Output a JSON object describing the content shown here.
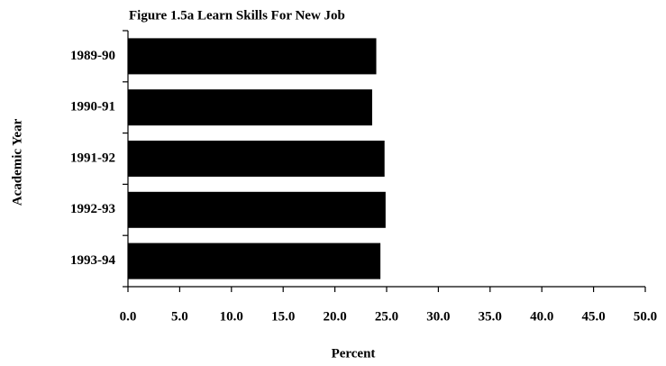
{
  "chart_data": {
    "type": "barh",
    "title": "Figure 1.5a  Learn Skills For New Job",
    "categories": [
      "1989-90",
      "1990-91",
      "1991-92",
      "1992-93",
      "1993-94"
    ],
    "values": [
      24.0,
      23.6,
      24.8,
      24.9,
      24.4
    ],
    "color": "#000000",
    "xlabel": "Percent",
    "ylabel": "Academic Year",
    "xlim": [
      0,
      50
    ],
    "xticks": [
      {
        "value": 0,
        "label": "0.0"
      },
      {
        "value": 5,
        "label": "5.0"
      },
      {
        "value": 10,
        "label": "10.0"
      },
      {
        "value": 15,
        "label": "15.0"
      },
      {
        "value": 20,
        "label": "20.0"
      },
      {
        "value": 25,
        "label": "25.0"
      },
      {
        "value": 30,
        "label": "30.0"
      },
      {
        "value": 35,
        "label": "35.0"
      },
      {
        "value": 40,
        "label": "40.0"
      },
      {
        "value": 45,
        "label": "45.0"
      },
      {
        "value": 50,
        "label": "50.0"
      }
    ]
  }
}
